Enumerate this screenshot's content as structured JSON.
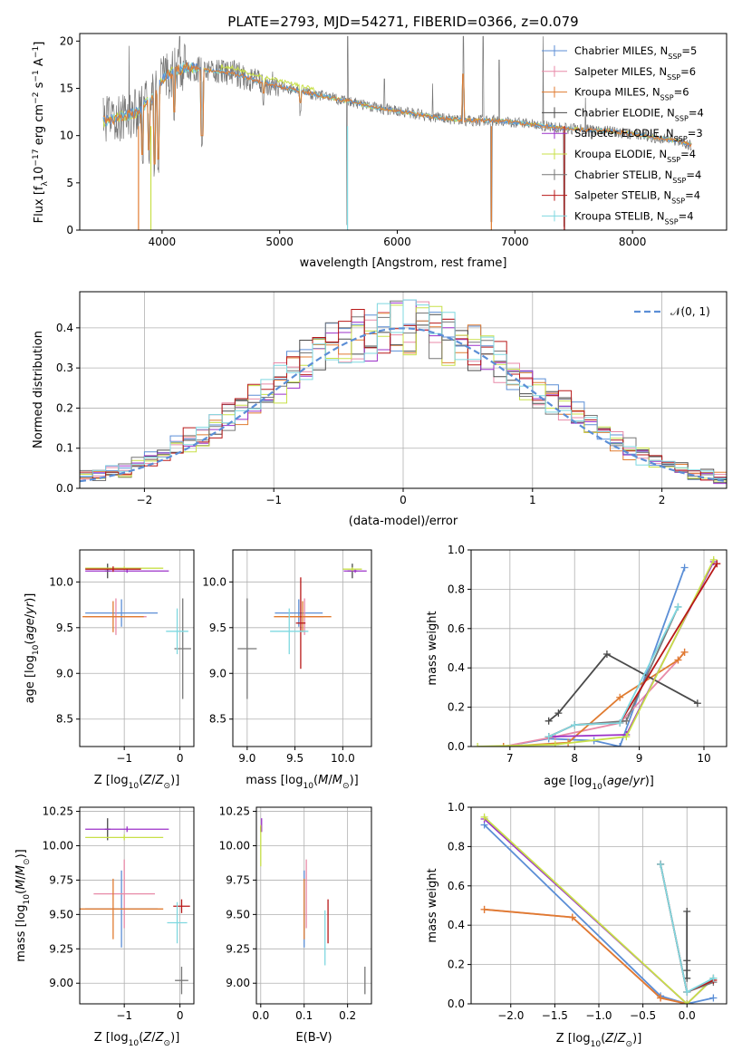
{
  "figure_title": "PLATE=2793, MJD=54271, FIBERID=0366, z=0.079",
  "colors": {
    "Chabrier MILES": "#5b8ed6",
    "Salpeter MILES": "#e88aa8",
    "Kroupa MILES": "#e07b30",
    "Chabrier ELODIE": "#4a4a4a",
    "Salpeter ELODIE": "#9b30c8",
    "Kroupa ELODIE": "#c8e048",
    "Chabrier STELIB": "#777777",
    "Salpeter STELIB": "#b81818",
    "Kroupa STELIB": "#7fd8e0",
    "normal": "#5b8ed6"
  },
  "chart_data": [
    {
      "type": "line",
      "panel": "spectrum",
      "xlabel": "wavelength [Angstrom, rest frame]",
      "ylabel_parts": [
        "Flux [f",
        "λ",
        "10",
        "−17",
        " erg cm",
        "−2",
        " s",
        "−1",
        " A",
        "−1",
        "]"
      ],
      "xlim": [
        3300,
        8800
      ],
      "ylim": [
        0,
        20.8
      ],
      "xticks": [
        4000,
        5000,
        6000,
        7000,
        8000
      ],
      "yticks": [
        0,
        5,
        10,
        15,
        20
      ],
      "legend_position": "top-right",
      "legend": [
        {
          "model": "Chabrier MILES",
          "n": "5",
          "text": "Chabrier MILES, N",
          "sub": "SSP",
          "suffix": "=5"
        },
        {
          "model": "Salpeter MILES",
          "n": "6",
          "text": "Salpeter MILES, N",
          "sub": "SSP",
          "suffix": "=6"
        },
        {
          "model": "Kroupa MILES",
          "n": "6",
          "text": "Kroupa MILES, N",
          "sub": "SSP",
          "suffix": "=6"
        },
        {
          "model": "Chabrier ELODIE",
          "n": "4",
          "text": "Chabrier ELODIE, N",
          "sub": "SSP",
          "suffix": "=4"
        },
        {
          "model": "Salpeter ELODIE",
          "n": "3",
          "text": "Salpeter ELODIE, N",
          "sub": "SSP",
          "suffix": "=3"
        },
        {
          "model": "Kroupa ELODIE",
          "n": "4",
          "text": "Kroupa ELODIE, N",
          "sub": "SSP",
          "suffix": "=4"
        },
        {
          "model": "Chabrier STELIB",
          "n": "4",
          "text": "Chabrier STELIB, N",
          "sub": "SSP",
          "suffix": "=4"
        },
        {
          "model": "Salpeter STELIB",
          "n": "4",
          "text": "Salpeter STELIB, N",
          "sub": "SSP",
          "suffix": "=4"
        },
        {
          "model": "Kroupa STELIB",
          "n": "4",
          "text": "Kroupa STELIB, N",
          "sub": "SSP",
          "suffix": "=4"
        }
      ],
      "continuum": {
        "x": [
          3500,
          3650,
          3800,
          3950,
          4000,
          4100,
          4200,
          4400,
          4600,
          4800,
          5000,
          5200,
          5400,
          5600,
          5800,
          6000,
          6200,
          6400,
          6600,
          6800,
          7000,
          7200,
          7400,
          7600,
          7800,
          8000,
          8200,
          8400,
          8500
        ],
        "y": [
          11.5,
          12.0,
          12.5,
          14.5,
          16.0,
          16.8,
          17.2,
          16.9,
          16.6,
          15.8,
          15.2,
          14.6,
          14.1,
          13.6,
          13.0,
          12.6,
          12.2,
          11.8,
          11.6,
          11.6,
          11.4,
          11.1,
          10.8,
          10.6,
          10.5,
          10.2,
          9.8,
          9.4,
          9.0
        ]
      },
      "absorption_features": [
        {
          "x": 3835,
          "y": 6.5
        },
        {
          "x": 3890,
          "y": 7.0
        },
        {
          "x": 3934,
          "y": 5.5
        },
        {
          "x": 3969,
          "y": 6.0
        },
        {
          "x": 4102,
          "y": 11.0
        },
        {
          "x": 4340,
          "y": 8.5
        },
        {
          "x": 4861,
          "y": 13.0
        },
        {
          "x": 5175,
          "y": 12.0
        },
        {
          "x": 5577,
          "y": 0.0
        },
        {
          "x": 6563,
          "y": 15.0
        },
        {
          "x": 6800,
          "y": 0.0
        },
        {
          "x": 7420,
          "y": 0.0
        }
      ],
      "spike_features": [
        {
          "x": 3720,
          "y": 19.5
        },
        {
          "x": 4150,
          "y": 20.5
        },
        {
          "x": 5577,
          "y": 20.5
        },
        {
          "x": 5890,
          "y": 16.0
        },
        {
          "x": 6300,
          "y": 15.5
        },
        {
          "x": 6563,
          "y": 20.5
        },
        {
          "x": 6730,
          "y": 20.5
        },
        {
          "x": 6865,
          "y": 18.0
        },
        {
          "x": 7240,
          "y": 20.5
        },
        {
          "x": 7600,
          "y": 14.0
        }
      ]
    },
    {
      "type": "histogram",
      "panel": "residuals",
      "xlabel": "(data-model)/error",
      "ylabel": "Normed distribution",
      "xlim": [
        -2.5,
        2.5
      ],
      "ylim": [
        0,
        0.49
      ],
      "xticks": [
        -2,
        -1,
        0,
        1,
        2
      ],
      "yticks": [
        0.0,
        0.1,
        0.2,
        0.3,
        0.4
      ],
      "grid": true,
      "legend_position": "top-right",
      "legend_label": "𝒩(0, 1)",
      "bin_width": 0.1,
      "reference_curve": "standard normal, dashed"
    },
    {
      "type": "scatter",
      "panel": "age-vs-Z",
      "xlabel": "Z [log10(Z/Z⊙)]",
      "ylabel": "age  [log10(age/yr)]",
      "xlim": [
        -1.8,
        0.25
      ],
      "ylim": [
        8.2,
        10.35
      ],
      "xticks": [
        -1,
        0
      ],
      "yticks": [
        8.5,
        9.0,
        9.5,
        10.0
      ],
      "grid": true,
      "points": [
        {
          "model": "Chabrier MILES",
          "x": -1.05,
          "y": 9.66,
          "xerr": 0.65,
          "yerr": 0.15
        },
        {
          "model": "Salpeter MILES",
          "x": -1.15,
          "y": 9.62,
          "xerr": 0.55,
          "yerr": 0.2
        },
        {
          "model": "Kroupa MILES",
          "x": -1.2,
          "y": 9.62,
          "xerr": 0.55,
          "yerr": 0.17
        },
        {
          "model": "Chabrier ELODIE",
          "x": -1.3,
          "y": 10.12,
          "xerr": 0.05,
          "yerr": 0.08
        },
        {
          "model": "Salpeter ELODIE",
          "x": -0.95,
          "y": 10.12,
          "xerr": 0.75,
          "yerr": 0.02
        },
        {
          "model": "Kroupa ELODIE",
          "x": -1.0,
          "y": 10.15,
          "xerr": 0.7,
          "yerr": 0.02
        },
        {
          "model": "Chabrier STELIB",
          "x": 0.05,
          "y": 9.27,
          "xerr": 0.15,
          "yerr": 0.55
        },
        {
          "model": "Salpeter STELIB",
          "x": -1.2,
          "y": 10.14,
          "xerr": 0.5,
          "yerr": 0.03
        },
        {
          "model": "Kroupa STELIB",
          "x": -0.05,
          "y": 9.46,
          "xerr": 0.2,
          "yerr": 0.25
        }
      ]
    },
    {
      "type": "scatter",
      "panel": "age-vs-mass",
      "xlabel": "mass [log10(M/M⊙)]",
      "xlim": [
        8.85,
        10.3
      ],
      "ylim": [
        8.2,
        10.35
      ],
      "xticks": [
        9.0,
        9.5,
        10.0
      ],
      "yticks": [
        8.5,
        9.0,
        9.5,
        10.0
      ],
      "grid": true,
      "points": [
        {
          "model": "Chabrier MILES",
          "x": 9.54,
          "y": 9.66,
          "xerr": 0.25,
          "yerr": 0.15
        },
        {
          "model": "Salpeter MILES",
          "x": 9.6,
          "y": 9.62,
          "xerr": 0.2,
          "yerr": 0.2
        },
        {
          "model": "Kroupa MILES",
          "x": 9.58,
          "y": 9.62,
          "xerr": 0.3,
          "yerr": 0.17
        },
        {
          "model": "Chabrier ELODIE",
          "x": 10.1,
          "y": 10.12,
          "xerr": 0.05,
          "yerr": 0.08
        },
        {
          "model": "Salpeter ELODIE",
          "x": 10.13,
          "y": 10.12,
          "xerr": 0.12,
          "yerr": 0.02
        },
        {
          "model": "Kroupa ELODIE",
          "x": 10.1,
          "y": 10.14,
          "xerr": 0.1,
          "yerr": 0.02
        },
        {
          "model": "Chabrier STELIB",
          "x": 9.0,
          "y": 9.27,
          "xerr": 0.1,
          "yerr": 0.55
        },
        {
          "model": "Salpeter STELIB",
          "x": 9.56,
          "y": 9.55,
          "xerr": 0.05,
          "yerr": 0.5
        },
        {
          "model": "Kroupa STELIB",
          "x": 9.44,
          "y": 9.46,
          "xerr": 0.2,
          "yerr": 0.25
        }
      ]
    },
    {
      "type": "line",
      "panel": "weight-vs-age",
      "xlabel": "age  [log10(age/yr)]",
      "ylabel": "mass weight",
      "xlim": [
        6.4,
        10.35
      ],
      "ylim": [
        0,
        1.0
      ],
      "xticks": [
        7,
        8,
        9,
        10
      ],
      "yticks": [
        0.0,
        0.2,
        0.4,
        0.6,
        0.8,
        1.0
      ],
      "grid": true,
      "series": [
        {
          "model": "Chabrier MILES",
          "x": [
            6.9,
            7.6,
            8.3,
            8.7,
            9.7
          ],
          "y": [
            0.0,
            0.04,
            0.03,
            0.0,
            0.91
          ]
        },
        {
          "model": "Salpeter MILES",
          "x": [
            6.9,
            7.7,
            8.7,
            9.6,
            9.7
          ],
          "y": [
            0.0,
            0.05,
            0.12,
            0.44,
            0.48
          ]
        },
        {
          "model": "Kroupa MILES",
          "x": [
            6.9,
            7.9,
            8.7,
            9.6,
            9.7
          ],
          "y": [
            0.0,
            0.02,
            0.25,
            0.44,
            0.48
          ]
        },
        {
          "model": "Chabrier ELODIE",
          "x": [
            7.6,
            7.75,
            8.5,
            9.9
          ],
          "y": [
            0.13,
            0.17,
            0.47,
            0.22
          ]
        },
        {
          "model": "Salpeter ELODIE",
          "x": [
            7.6,
            8.8,
            10.15
          ],
          "y": [
            0.05,
            0.06,
            0.94
          ]
        },
        {
          "model": "Kroupa ELODIE",
          "x": [
            6.5,
            7.7,
            8.8,
            10.15
          ],
          "y": [
            0.0,
            0.01,
            0.05,
            0.95
          ]
        },
        {
          "model": "Chabrier STELIB",
          "x": [
            7.6,
            8.0,
            8.8,
            9.6
          ],
          "y": [
            0.05,
            0.11,
            0.13,
            0.71
          ]
        },
        {
          "model": "Salpeter STELIB",
          "x": [
            7.6,
            8.0,
            8.7,
            10.2
          ],
          "y": [
            0.05,
            0.11,
            0.12,
            0.93
          ]
        },
        {
          "model": "Kroupa STELIB",
          "x": [
            7.6,
            8.0,
            8.7,
            9.6
          ],
          "y": [
            0.05,
            0.11,
            0.12,
            0.71
          ]
        }
      ]
    },
    {
      "type": "scatter",
      "panel": "mass-vs-Z",
      "xlabel": "Z [log10(Z/Z⊙)]",
      "ylabel": "mass [log10(M/M⊙)]",
      "xlim": [
        -1.8,
        0.25
      ],
      "ylim": [
        8.85,
        10.28
      ],
      "xticks": [
        -1,
        0
      ],
      "yticks": [
        9.0,
        9.25,
        9.5,
        9.75,
        10.0,
        10.25
      ],
      "grid": true,
      "points": [
        {
          "model": "Chabrier MILES",
          "x": -1.05,
          "y": 9.54,
          "xerr": 0.65,
          "yerr": 0.28
        },
        {
          "model": "Salpeter MILES",
          "x": -1.0,
          "y": 9.65,
          "xerr": 0.55,
          "yerr": 0.25
        },
        {
          "model": "Kroupa MILES",
          "x": -1.2,
          "y": 9.54,
          "xerr": 0.9,
          "yerr": 0.22
        },
        {
          "model": "Chabrier ELODIE",
          "x": -1.3,
          "y": 10.12,
          "xerr": 0.05,
          "yerr": 0.08
        },
        {
          "model": "Salpeter ELODIE",
          "x": -0.95,
          "y": 10.12,
          "xerr": 0.75,
          "yerr": 0.02
        },
        {
          "model": "Kroupa ELODIE",
          "x": -1.0,
          "y": 10.06,
          "xerr": 0.7,
          "yerr": 0.02
        },
        {
          "model": "Chabrier STELIB",
          "x": 0.03,
          "y": 9.02,
          "xerr": 0.12,
          "yerr": 0.1
        },
        {
          "model": "Salpeter STELIB",
          "x": 0.03,
          "y": 9.56,
          "xerr": 0.15,
          "yerr": 0.05
        },
        {
          "model": "Kroupa STELIB",
          "x": -0.05,
          "y": 9.44,
          "xerr": 0.18,
          "yerr": 0.15
        }
      ]
    },
    {
      "type": "scatter",
      "panel": "mass-vs-ebv",
      "xlabel": "E(B-V)",
      "xlim": [
        -0.01,
        0.255
      ],
      "ylim": [
        8.85,
        10.28
      ],
      "xticks": [
        0.0,
        0.1,
        0.2
      ],
      "yticks": [
        9.0,
        9.25,
        9.5,
        9.75,
        10.0,
        10.25
      ],
      "grid": true,
      "points": [
        {
          "model": "Chabrier MILES",
          "x": 0.1,
          "y": 9.54,
          "yerr": 0.28
        },
        {
          "model": "Salpeter MILES",
          "x": 0.105,
          "y": 9.65,
          "yerr": 0.25
        },
        {
          "model": "Kroupa MILES",
          "x": 0.1,
          "y": 9.54,
          "yerr": 0.22
        },
        {
          "model": "Chabrier ELODIE",
          "x": 0.0,
          "y": 10.12,
          "yerr": 0.02
        },
        {
          "model": "Salpeter ELODIE",
          "x": 0.002,
          "y": 10.15,
          "yerr": 0.05
        },
        {
          "model": "Kroupa ELODIE",
          "x": 0.0,
          "y": 10.0,
          "yerr": 0.15
        },
        {
          "model": "Chabrier STELIB",
          "x": 0.24,
          "y": 9.02,
          "yerr": 0.1
        },
        {
          "model": "Salpeter STELIB",
          "x": 0.155,
          "y": 9.45,
          "yerr": 0.16
        },
        {
          "model": "Kroupa STELIB",
          "x": 0.148,
          "y": 9.33,
          "yerr": 0.2
        }
      ]
    },
    {
      "type": "line",
      "panel": "weight-vs-Z",
      "xlabel": "Z [log10(Z/Z⊙)]",
      "ylabel": "mass weight",
      "xlim": [
        -2.45,
        0.45
      ],
      "ylim": [
        0,
        1.0
      ],
      "xticks": [
        -2.0,
        -1.5,
        -1.0,
        -0.5,
        0.0
      ],
      "yticks": [
        0.0,
        0.2,
        0.4,
        0.6,
        0.8,
        1.0
      ],
      "grid": true,
      "series": [
        {
          "model": "Chabrier MILES",
          "x": [
            -2.3,
            -0.3,
            0.0,
            0.3
          ],
          "y": [
            0.91,
            0.04,
            0.0,
            0.03
          ]
        },
        {
          "model": "Salpeter MILES",
          "x": [
            -2.3,
            -1.3,
            -0.3,
            0.0
          ],
          "y": [
            0.48,
            0.44,
            0.03,
            0.0
          ]
        },
        {
          "model": "Kroupa MILES",
          "x": [
            -2.3,
            -1.3,
            -0.3,
            0.0
          ],
          "y": [
            0.48,
            0.44,
            0.03,
            0.0
          ]
        },
        {
          "model": "Chabrier ELODIE",
          "x": [
            0.0,
            0.0,
            0.0,
            0.0
          ],
          "y": [
            0.47,
            0.22,
            0.17,
            0.13
          ]
        },
        {
          "model": "Salpeter ELODIE",
          "x": [
            -2.3,
            0.0,
            0.3
          ],
          "y": [
            0.94,
            0.0,
            0.13
          ]
        },
        {
          "model": "Kroupa ELODIE",
          "x": [
            -2.3,
            0.0,
            0.3
          ],
          "y": [
            0.95,
            0.0,
            0.13
          ]
        },
        {
          "model": "Chabrier STELIB",
          "x": [
            -0.3,
            0.0,
            0.3
          ],
          "y": [
            0.71,
            0.06,
            0.11
          ]
        },
        {
          "model": "Salpeter STELIB",
          "x": [
            -0.3,
            0.0,
            0.3
          ],
          "y": [
            0.71,
            0.06,
            0.12
          ]
        },
        {
          "model": "Kroupa STELIB",
          "x": [
            -0.3,
            0.0,
            0.3
          ],
          "y": [
            0.71,
            0.06,
            0.13
          ]
        }
      ]
    }
  ]
}
